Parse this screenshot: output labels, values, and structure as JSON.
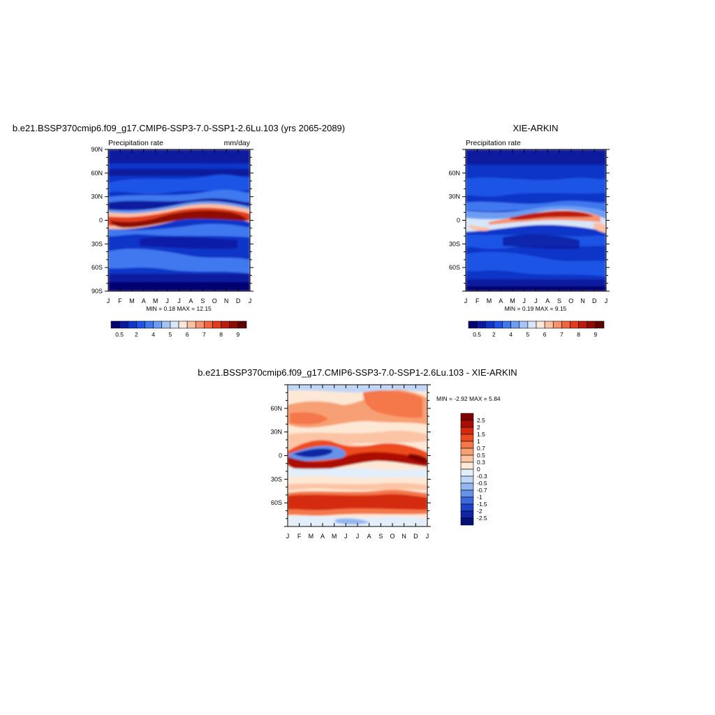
{
  "chart_data": [
    {
      "type": "heatmap",
      "title": "b.e21.BSSP370cmip6.f09_g17.CMIP6-SSP3-7.0-SSP1-2.6Lu.103 (yrs 2065-2089)",
      "left_label": "Precipitation rate",
      "right_label": "mm/day",
      "x_labels": [
        "J",
        "F",
        "M",
        "A",
        "M",
        "J",
        "J",
        "A",
        "S",
        "O",
        "N",
        "D",
        "J"
      ],
      "y_labels": [
        "90N",
        "60N",
        "30N",
        "0",
        "30S",
        "60S",
        "90S"
      ],
      "y_values": [
        90,
        60,
        30,
        0,
        -30,
        -60,
        -90
      ],
      "ylim": [
        -90,
        90
      ],
      "stats": "MIN =   0.18 MAX =  12.15",
      "colorbar_labels": [
        "0.5",
        "2",
        "4",
        "5",
        "6",
        "7",
        "8",
        "9"
      ]
    },
    {
      "type": "heatmap",
      "title": "XIE-ARKIN",
      "left_label": "Precipitation rate",
      "right_label": "",
      "x_labels": [
        "J",
        "F",
        "M",
        "A",
        "M",
        "J",
        "J",
        "A",
        "S",
        "O",
        "N",
        "D",
        "J"
      ],
      "y_labels": [
        "60N",
        "30N",
        "0",
        "30S",
        "60S"
      ],
      "y_values": [
        60,
        30,
        0,
        -30,
        -60
      ],
      "ylim": [
        -90,
        90
      ],
      "stats": "MIN =   0.19 MAX =   9.15",
      "colorbar_labels": [
        "0.5",
        "2",
        "4",
        "5",
        "6",
        "7",
        "8",
        "9"
      ]
    },
    {
      "type": "heatmap",
      "title": "b.e21.BSSP370cmip6.f09_g17.CMIP6-SSP3-7.0-SSP1-2.6Lu.103 - XIE-ARKIN",
      "x_labels": [
        "J",
        "F",
        "M",
        "A",
        "M",
        "J",
        "J",
        "A",
        "S",
        "O",
        "N",
        "D",
        "J"
      ],
      "y_labels": [
        "60N",
        "30N",
        "0",
        "30S",
        "60S"
      ],
      "y_values": [
        60,
        30,
        0,
        -30,
        -60
      ],
      "ylim": [
        -90,
        90
      ],
      "stats": "MIN =  -2.92 MAX =   5.84",
      "colorbar_labels": [
        "2.5",
        "2",
        "1.5",
        "1",
        "0.7",
        "0.5",
        "0.3",
        "0",
        "-0.3",
        "-0.5",
        "-0.7",
        "-1",
        "-1.5",
        "-2",
        "-2.5"
      ]
    }
  ],
  "colors": {
    "abs_scale": [
      "#030372",
      "#0a1a9e",
      "#0e36c8",
      "#1f55e6",
      "#3f78f0",
      "#6d9df2",
      "#a6c3f5",
      "#d8e6fa",
      "#fde7d8",
      "#fbbfa3",
      "#f79270",
      "#f2663f",
      "#e23c1b",
      "#bd1a0a",
      "#8e0a03",
      "#610000"
    ],
    "diff_scale": [
      "#800000",
      "#ad0c02",
      "#d42a0a",
      "#ed4b1f",
      "#f47848",
      "#f8a074",
      "#fbc5a5",
      "#fde8d6",
      "#e3eefb",
      "#c0d6f7",
      "#94b7f1",
      "#6592ea",
      "#3b6ae0",
      "#1f43c8",
      "#0f25a3",
      "#05107a"
    ]
  }
}
